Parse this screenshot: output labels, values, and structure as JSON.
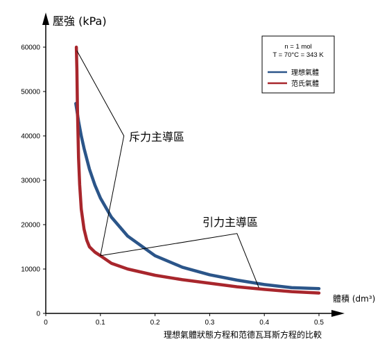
{
  "chart_data": {
    "type": "line",
    "title": "",
    "ylabel": "壓強 (kPa)",
    "xlabel": "體積 (dm³)",
    "caption": "理想氣體狀態方程和范德瓦耳斯方程的比較",
    "xlim": [
      0,
      0.5
    ],
    "ylim": [
      0,
      60000
    ],
    "x_ticks": [
      0,
      0.1,
      0.2,
      0.3,
      0.4,
      0.5
    ],
    "x_tick_labels": [
      "0",
      "0.1",
      "0.2",
      "0.3",
      "0.4",
      "0.5"
    ],
    "y_ticks": [
      0,
      10000,
      20000,
      30000,
      40000,
      50000,
      60000
    ],
    "y_tick_labels": [
      "0",
      "10000",
      "20000",
      "30000",
      "40000",
      "50000",
      "60000"
    ],
    "conditions": [
      "n = 1 mol",
      "T = 70°C = 343 K"
    ],
    "legend_position": "top-right",
    "series": [
      {
        "name": "理想氣體",
        "color": "#2b5589",
        "x": [
          0.055,
          0.06,
          0.065,
          0.07,
          0.08,
          0.09,
          0.1,
          0.12,
          0.15,
          0.2,
          0.25,
          0.3,
          0.35,
          0.4,
          0.45,
          0.5
        ],
        "y": [
          47300,
          43300,
          40000,
          37200,
          32500,
          28900,
          26000,
          21700,
          17400,
          13000,
          10400,
          8700,
          7500,
          6500,
          5800,
          5600
        ]
      },
      {
        "name": "范氏氣體",
        "color": "#a8262c",
        "x": [
          0.056,
          0.057,
          0.058,
          0.06,
          0.062,
          0.065,
          0.07,
          0.075,
          0.08,
          0.09,
          0.1,
          0.12,
          0.15,
          0.2,
          0.25,
          0.3,
          0.35,
          0.4,
          0.45,
          0.5
        ],
        "y": [
          60000,
          55000,
          46000,
          35000,
          29000,
          23500,
          19000,
          16500,
          15000,
          13800,
          13000,
          11300,
          10000,
          8600,
          7600,
          6800,
          6000,
          5400,
          4900,
          4600
        ]
      }
    ],
    "annotations": [
      {
        "text": "斥力主導區",
        "target": "repulsion-dominated region"
      },
      {
        "text": "引力主導區",
        "target": "attraction-dominated region"
      }
    ]
  }
}
